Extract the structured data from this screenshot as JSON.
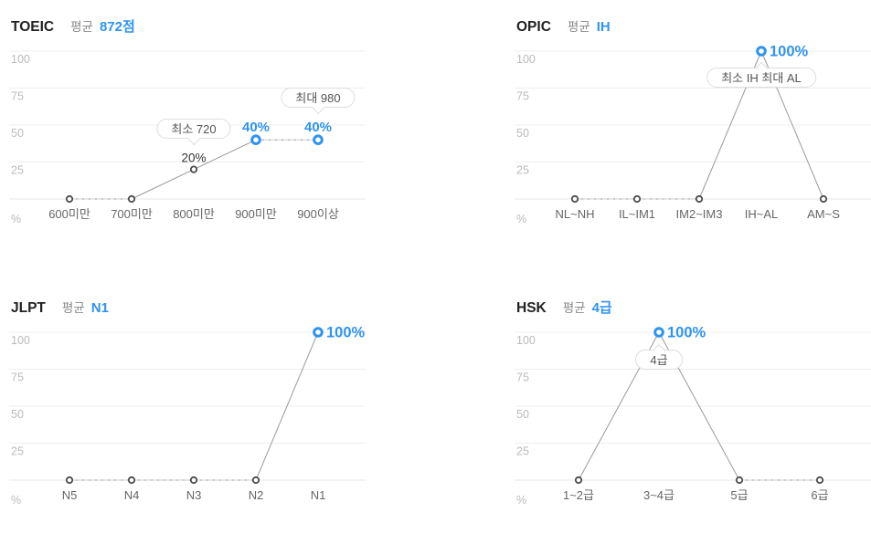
{
  "colors": {
    "accent_blue": "#2f93f0",
    "series_line": "#9a9a9a",
    "series_line_light": "#cfcfcf",
    "grid_line": "#efefef",
    "axis_line": "#e7e7e7",
    "y_tick_label": "#bbbbbb",
    "category_label": "#666666",
    "dark_point_stroke": "#4a4a4a",
    "dark_value_label": "#333333",
    "tooltip_border": "#dddddd",
    "tooltip_text": "#555555",
    "title_text": "#222222",
    "title_muted": "#888888"
  },
  "chart_data": [
    {
      "id": "toeic",
      "type": "line",
      "title": "TOEIC",
      "average_label": "평균",
      "average_value": "872점",
      "unit_label": "%",
      "y_ticks": [
        "100",
        "75",
        "50",
        "25"
      ],
      "ylim": [
        0,
        100
      ],
      "grid": true,
      "categories": [
        "600미만",
        "700미만",
        "800미만",
        "900미만",
        "900이상"
      ],
      "values": [
        0,
        0,
        20,
        40,
        40
      ],
      "point_labels": [
        "",
        "",
        "20%",
        "40%",
        "40%"
      ],
      "highlighted": [
        false,
        false,
        false,
        true,
        true
      ],
      "tooltips": [
        {
          "text": "최소 720",
          "anchor_index": 2,
          "pointer": "down"
        },
        {
          "text": "최대 980",
          "anchor_index": 4,
          "pointer": "down"
        }
      ]
    },
    {
      "id": "opic",
      "type": "line",
      "title": "OPIC",
      "average_label": "평균",
      "average_value": "IH",
      "unit_label": "%",
      "y_ticks": [
        "100",
        "75",
        "50",
        "25"
      ],
      "ylim": [
        0,
        100
      ],
      "grid": true,
      "categories": [
        "NL~NH",
        "IL~IM1",
        "IM2~IM3",
        "IH~AL",
        "AM~S"
      ],
      "values": [
        0,
        0,
        0,
        100,
        0
      ],
      "point_labels": [
        "",
        "",
        "",
        "100%",
        ""
      ],
      "highlighted": [
        false,
        false,
        false,
        true,
        false
      ],
      "tooltips": [
        {
          "text": "최소 IH 최대 AL",
          "anchor_index": 3,
          "pointer": "up"
        }
      ]
    },
    {
      "id": "jlpt",
      "type": "line",
      "title": "JLPT",
      "average_label": "평균",
      "average_value": "N1",
      "unit_label": "%",
      "y_ticks": [
        "100",
        "75",
        "50",
        "25"
      ],
      "ylim": [
        0,
        100
      ],
      "grid": true,
      "categories": [
        "N5",
        "N4",
        "N3",
        "N2",
        "N1"
      ],
      "values": [
        0,
        0,
        0,
        0,
        100
      ],
      "point_labels": [
        "",
        "",
        "",
        "",
        "100%"
      ],
      "highlighted": [
        false,
        false,
        false,
        false,
        true
      ],
      "tooltips": []
    },
    {
      "id": "hsk",
      "type": "line",
      "title": "HSK",
      "average_label": "평균",
      "average_value": "4급",
      "unit_label": "%",
      "y_ticks": [
        "100",
        "75",
        "50",
        "25"
      ],
      "ylim": [
        0,
        100
      ],
      "grid": true,
      "categories": [
        "1~2급",
        "3~4급",
        "5급",
        "6급"
      ],
      "values": [
        0,
        100,
        0,
        0
      ],
      "point_labels": [
        "",
        "100%",
        "",
        ""
      ],
      "highlighted": [
        false,
        true,
        false,
        false
      ],
      "tooltips": [
        {
          "text": "4급",
          "anchor_index": 1,
          "pointer": "up"
        }
      ]
    }
  ]
}
